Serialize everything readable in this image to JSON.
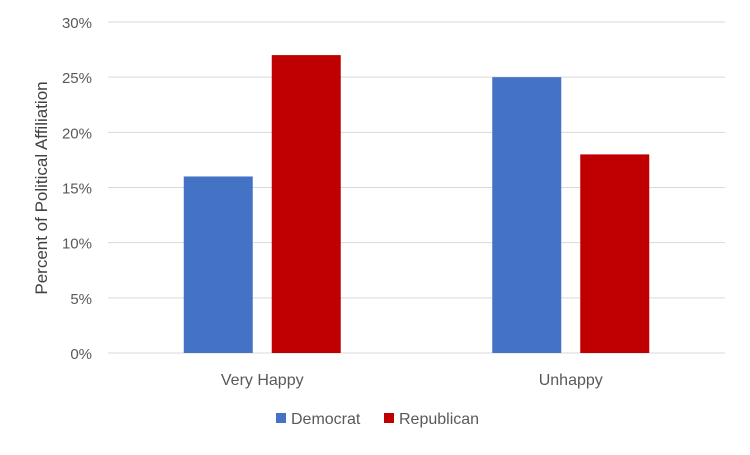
{
  "chart_data": {
    "type": "bar",
    "title": "",
    "xlabel": "",
    "ylabel": "Percent of Political Affiliation",
    "categories": [
      "Very Happy",
      "Unhappy"
    ],
    "series": [
      {
        "name": "Democrat",
        "values": [
          0.16,
          0.25
        ],
        "color": "#4472C4"
      },
      {
        "name": "Republican",
        "values": [
          0.27,
          0.18
        ],
        "color": "#C00000"
      }
    ],
    "ylim": [
      0,
      0.3
    ],
    "yticks": [
      {
        "value": 0.0,
        "label": "0%"
      },
      {
        "value": 0.05,
        "label": "5%"
      },
      {
        "value": 0.1,
        "label": "10%"
      },
      {
        "value": 0.15,
        "label": "15%"
      },
      {
        "value": 0.2,
        "label": "20%"
      },
      {
        "value": 0.25,
        "label": "25%"
      },
      {
        "value": 0.3,
        "label": "30%"
      }
    ],
    "grid": true,
    "legend_position": "bottom"
  },
  "colors": {
    "grid": "#d9d9d9",
    "text": "#595959",
    "axis_title": "#404040"
  }
}
